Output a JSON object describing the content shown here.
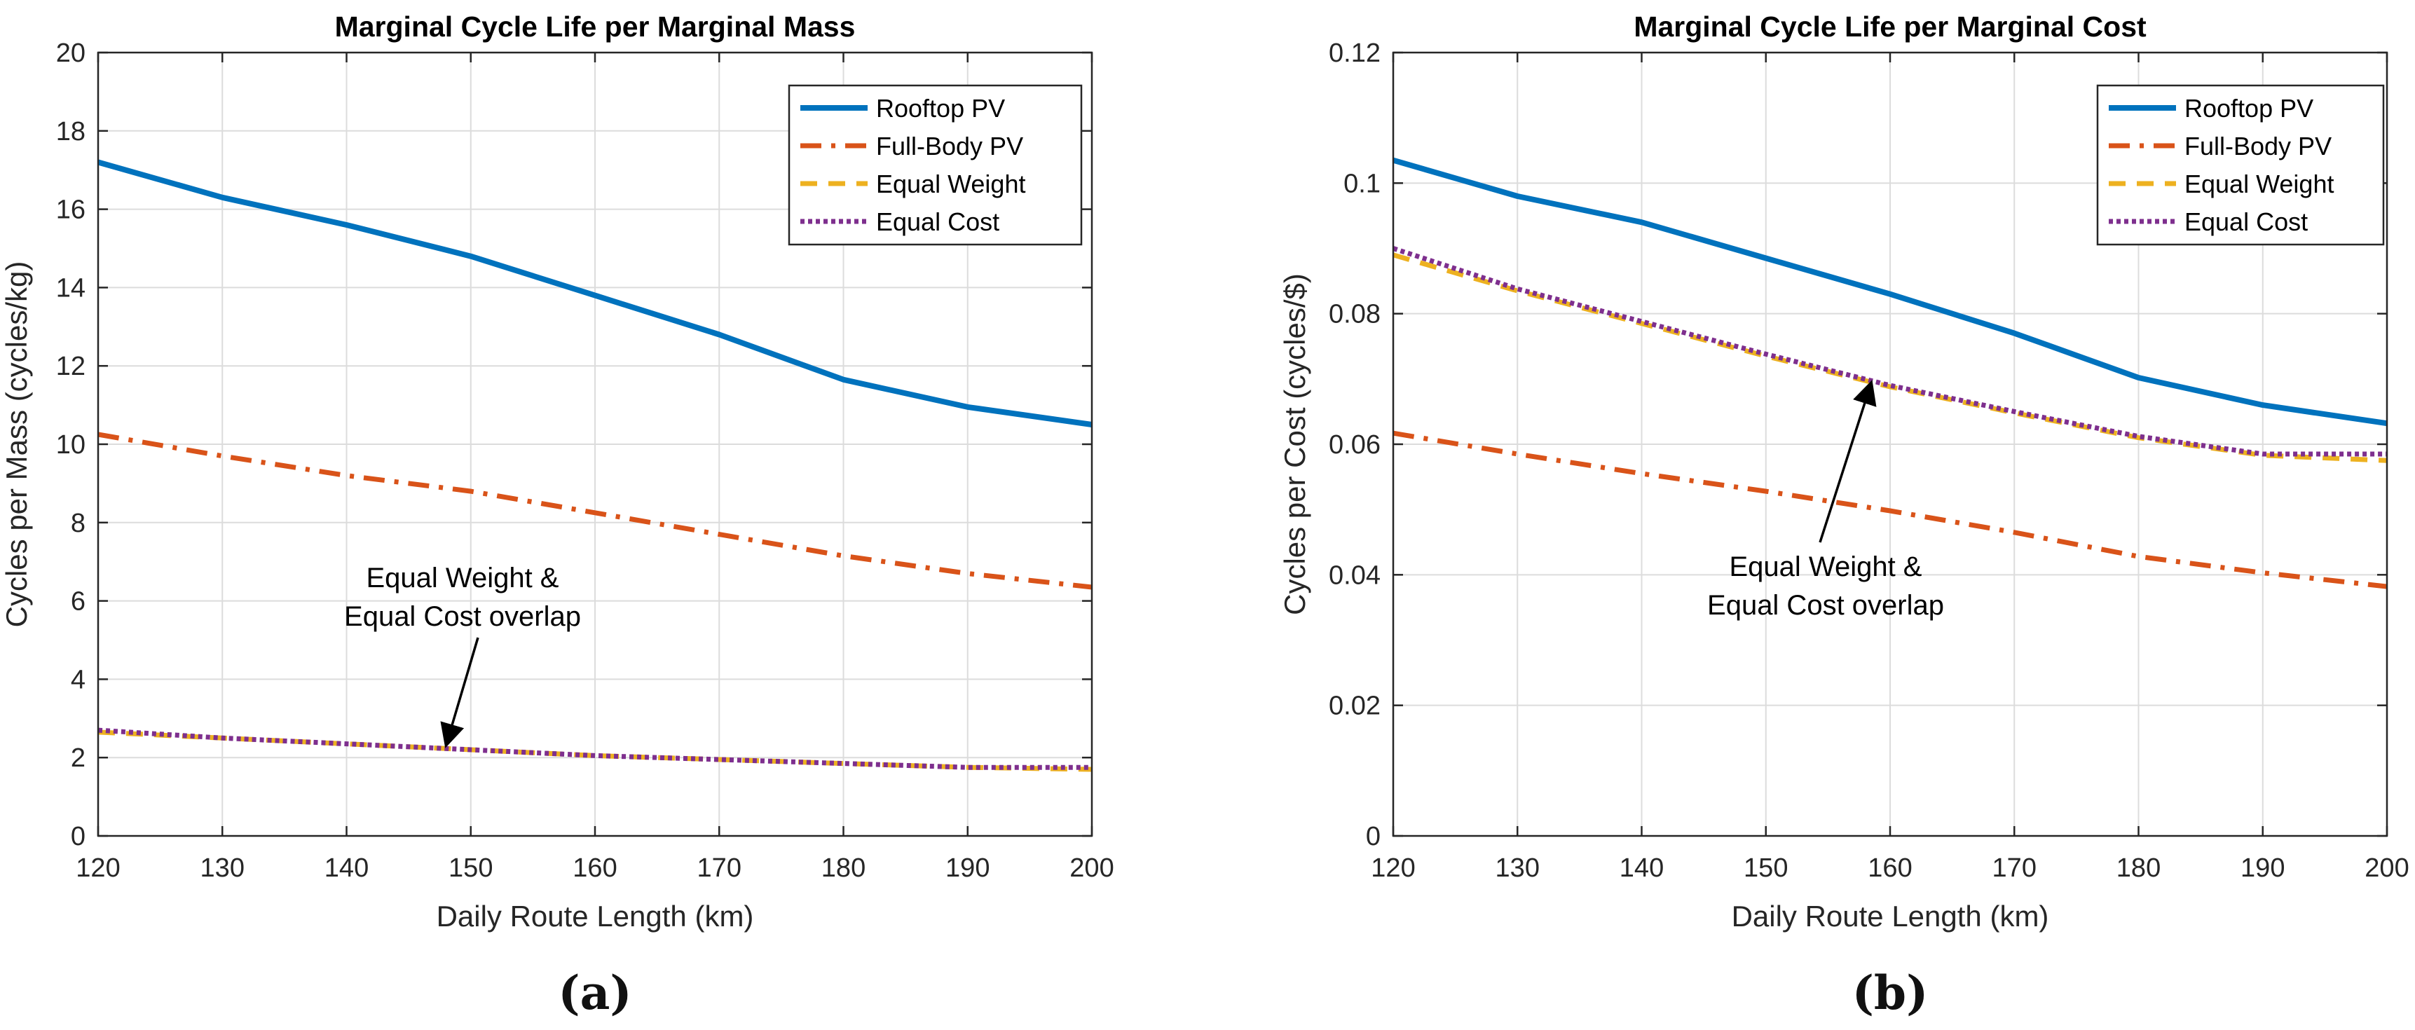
{
  "chart_data": [
    {
      "type": "line",
      "panel_label": "(a)",
      "title": "Marginal Cycle Life per Marginal Mass",
      "xlabel": "Daily Route Length (km)",
      "ylabel": "Cycles per Mass (cycles/kg)",
      "xlim": [
        120,
        200
      ],
      "ylim": [
        0,
        20
      ],
      "xticks": [
        120,
        130,
        140,
        150,
        160,
        170,
        180,
        190,
        200
      ],
      "yticks": [
        0,
        2,
        4,
        6,
        8,
        10,
        12,
        14,
        16,
        18,
        20
      ],
      "ytick_labels": [
        "0",
        "2",
        "4",
        "6",
        "8",
        "10",
        "12",
        "14",
        "16",
        "18",
        "20"
      ],
      "grid": true,
      "legend_position": "top-right",
      "x": [
        120,
        130,
        140,
        150,
        160,
        170,
        180,
        190,
        200
      ],
      "series": [
        {
          "name": "Rooftop PV",
          "color": "#0072BD",
          "style": "solid",
          "values": [
            17.2,
            16.3,
            15.6,
            14.8,
            13.8,
            12.8,
            11.65,
            10.95,
            10.5
          ]
        },
        {
          "name": "Full-Body PV",
          "color": "#D95319",
          "style": "dashdot",
          "values": [
            10.25,
            9.7,
            9.2,
            8.8,
            8.25,
            7.7,
            7.15,
            6.7,
            6.35
          ]
        },
        {
          "name": "Equal Weight",
          "color": "#EDB120",
          "style": "dashed",
          "values": [
            2.65,
            2.5,
            2.35,
            2.2,
            2.05,
            1.95,
            1.85,
            1.75,
            1.7
          ]
        },
        {
          "name": "Equal Cost",
          "color": "#7E2F8E",
          "style": "dotted",
          "values": [
            2.7,
            2.5,
            2.35,
            2.2,
            2.05,
            1.95,
            1.85,
            1.75,
            1.75
          ]
        }
      ],
      "annotation": {
        "lines": [
          "Equal Weight &",
          "Equal Cost overlap"
        ],
        "points_to": {
          "x": 148,
          "y": 2.3
        }
      }
    },
    {
      "type": "line",
      "panel_label": "(b)",
      "title": "Marginal Cycle Life per Marginal Cost",
      "xlabel": "Daily Route Length (km)",
      "ylabel": "Cycles per Cost (cycles/$)",
      "xlim": [
        120,
        200
      ],
      "ylim": [
        0,
        0.12
      ],
      "xticks": [
        120,
        130,
        140,
        150,
        160,
        170,
        180,
        190,
        200
      ],
      "yticks": [
        0,
        0.02,
        0.04,
        0.06,
        0.08,
        0.1,
        0.12
      ],
      "ytick_labels": [
        "0",
        "0.02",
        "0.04",
        "0.06",
        "0.08",
        "0.1",
        "0.12"
      ],
      "grid": true,
      "legend_position": "top-right",
      "x": [
        120,
        130,
        140,
        150,
        160,
        170,
        180,
        190,
        200
      ],
      "series": [
        {
          "name": "Rooftop PV",
          "color": "#0072BD",
          "style": "solid",
          "values": [
            0.1035,
            0.098,
            0.094,
            0.0885,
            0.083,
            0.077,
            0.0702,
            0.066,
            0.0632
          ]
        },
        {
          "name": "Full-Body PV",
          "color": "#D95319",
          "style": "dashdot",
          "values": [
            0.0617,
            0.0585,
            0.0555,
            0.0528,
            0.0498,
            0.0465,
            0.0428,
            0.0403,
            0.0382
          ]
        },
        {
          "name": "Equal Weight",
          "color": "#EDB120",
          "style": "dashed",
          "values": [
            0.089,
            0.0835,
            0.0785,
            0.0735,
            0.0688,
            0.0648,
            0.061,
            0.0583,
            0.0575
          ]
        },
        {
          "name": "Equal Cost",
          "color": "#7E2F8E",
          "style": "dotted",
          "values": [
            0.09,
            0.0838,
            0.0788,
            0.0738,
            0.069,
            0.065,
            0.0612,
            0.0585,
            0.0585
          ]
        }
      ],
      "annotation": {
        "lines": [
          "Equal Weight &",
          "Equal Cost overlap"
        ],
        "points_to": {
          "x": 158.5,
          "y": 0.0695
        }
      }
    }
  ]
}
